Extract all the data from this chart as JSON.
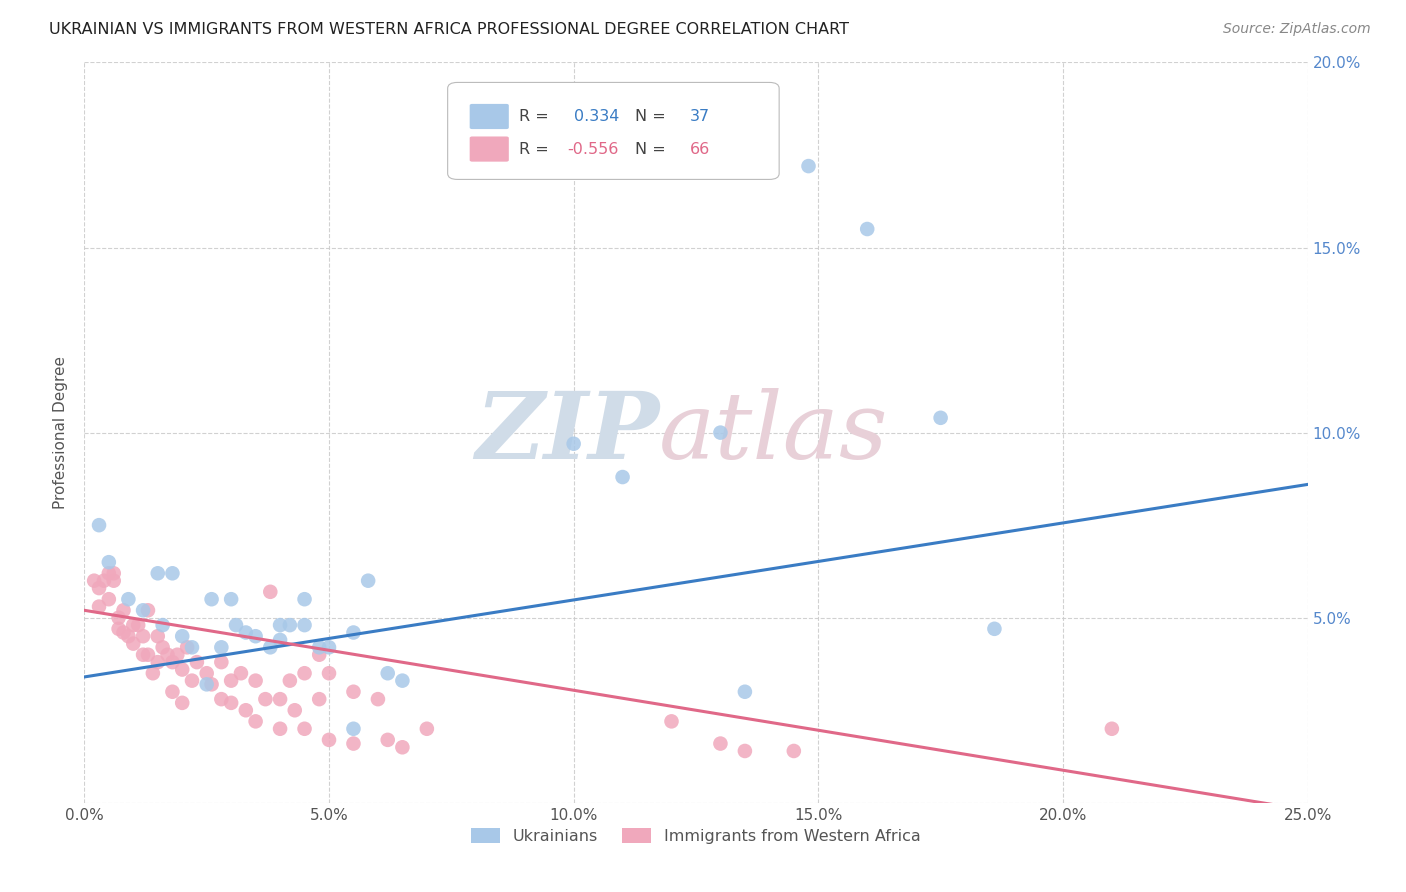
{
  "title": "UKRAINIAN VS IMMIGRANTS FROM WESTERN AFRICA PROFESSIONAL DEGREE CORRELATION CHART",
  "source": "Source: ZipAtlas.com",
  "ylabel": "Professional Degree",
  "xmin": 0.0,
  "xmax": 0.25,
  "ymin": 0.0,
  "ymax": 0.2,
  "blue_R": 0.334,
  "blue_N": 37,
  "pink_R": -0.556,
  "pink_N": 66,
  "blue_color": "#A8C8E8",
  "pink_color": "#F0A8BC",
  "blue_line_color": "#3A7CC4",
  "pink_line_color": "#E06888",
  "blue_line_start_y": 0.034,
  "blue_line_end_y": 0.086,
  "pink_line_start_y": 0.052,
  "pink_line_end_y": -0.002,
  "blue_scatter": [
    [
      0.003,
      0.075
    ],
    [
      0.005,
      0.065
    ],
    [
      0.009,
      0.055
    ],
    [
      0.012,
      0.052
    ],
    [
      0.015,
      0.062
    ],
    [
      0.016,
      0.048
    ],
    [
      0.018,
      0.062
    ],
    [
      0.02,
      0.045
    ],
    [
      0.022,
      0.042
    ],
    [
      0.025,
      0.032
    ],
    [
      0.026,
      0.055
    ],
    [
      0.028,
      0.042
    ],
    [
      0.03,
      0.055
    ],
    [
      0.031,
      0.048
    ],
    [
      0.033,
      0.046
    ],
    [
      0.035,
      0.045
    ],
    [
      0.038,
      0.042
    ],
    [
      0.04,
      0.048
    ],
    [
      0.04,
      0.044
    ],
    [
      0.042,
      0.048
    ],
    [
      0.045,
      0.048
    ],
    [
      0.045,
      0.055
    ],
    [
      0.048,
      0.042
    ],
    [
      0.05,
      0.042
    ],
    [
      0.055,
      0.046
    ],
    [
      0.058,
      0.06
    ],
    [
      0.062,
      0.035
    ],
    [
      0.065,
      0.033
    ],
    [
      0.1,
      0.097
    ],
    [
      0.11,
      0.088
    ],
    [
      0.13,
      0.1
    ],
    [
      0.135,
      0.03
    ],
    [
      0.148,
      0.172
    ],
    [
      0.16,
      0.155
    ],
    [
      0.175,
      0.104
    ],
    [
      0.186,
      0.047
    ],
    [
      0.055,
      0.02
    ]
  ],
  "pink_scatter": [
    [
      0.002,
      0.06
    ],
    [
      0.003,
      0.058
    ],
    [
      0.003,
      0.053
    ],
    [
      0.004,
      0.06
    ],
    [
      0.005,
      0.062
    ],
    [
      0.005,
      0.055
    ],
    [
      0.006,
      0.06
    ],
    [
      0.007,
      0.05
    ],
    [
      0.007,
      0.047
    ],
    [
      0.008,
      0.052
    ],
    [
      0.008,
      0.046
    ],
    [
      0.009,
      0.045
    ],
    [
      0.01,
      0.048
    ],
    [
      0.01,
      0.043
    ],
    [
      0.011,
      0.048
    ],
    [
      0.012,
      0.045
    ],
    [
      0.012,
      0.04
    ],
    [
      0.013,
      0.052
    ],
    [
      0.013,
      0.04
    ],
    [
      0.014,
      0.035
    ],
    [
      0.015,
      0.045
    ],
    [
      0.015,
      0.038
    ],
    [
      0.016,
      0.042
    ],
    [
      0.017,
      0.04
    ],
    [
      0.018,
      0.038
    ],
    [
      0.018,
      0.03
    ],
    [
      0.019,
      0.04
    ],
    [
      0.02,
      0.036
    ],
    [
      0.02,
      0.027
    ],
    [
      0.021,
      0.042
    ],
    [
      0.022,
      0.033
    ],
    [
      0.023,
      0.038
    ],
    [
      0.025,
      0.035
    ],
    [
      0.026,
      0.032
    ],
    [
      0.028,
      0.038
    ],
    [
      0.028,
      0.028
    ],
    [
      0.03,
      0.033
    ],
    [
      0.03,
      0.027
    ],
    [
      0.032,
      0.035
    ],
    [
      0.033,
      0.025
    ],
    [
      0.035,
      0.033
    ],
    [
      0.035,
      0.022
    ],
    [
      0.037,
      0.028
    ],
    [
      0.038,
      0.057
    ],
    [
      0.04,
      0.028
    ],
    [
      0.04,
      0.02
    ],
    [
      0.042,
      0.033
    ],
    [
      0.043,
      0.025
    ],
    [
      0.045,
      0.035
    ],
    [
      0.045,
      0.02
    ],
    [
      0.048,
      0.04
    ],
    [
      0.048,
      0.028
    ],
    [
      0.05,
      0.035
    ],
    [
      0.05,
      0.017
    ],
    [
      0.055,
      0.03
    ],
    [
      0.055,
      0.016
    ],
    [
      0.06,
      0.028
    ],
    [
      0.062,
      0.017
    ],
    [
      0.065,
      0.015
    ],
    [
      0.07,
      0.02
    ],
    [
      0.12,
      0.022
    ],
    [
      0.13,
      0.016
    ],
    [
      0.135,
      0.014
    ],
    [
      0.145,
      0.014
    ],
    [
      0.21,
      0.02
    ],
    [
      0.006,
      0.062
    ]
  ],
  "xticks": [
    0.0,
    0.05,
    0.1,
    0.15,
    0.2,
    0.25
  ],
  "yticks": [
    0.0,
    0.05,
    0.1,
    0.15,
    0.2
  ],
  "xticklabels": [
    "0.0%",
    "5.0%",
    "10.0%",
    "15.0%",
    "20.0%",
    "25.0%"
  ],
  "ytick_right_labels": [
    "",
    "5.0%",
    "10.0%",
    "15.0%",
    "20.0%"
  ],
  "legend_blue_label": "Ukrainians",
  "legend_pink_label": "Immigrants from Western Africa",
  "background_color": "#FFFFFF",
  "grid_color": "#CCCCCC",
  "title_color": "#222222",
  "source_color": "#888888",
  "watermark_zip_color": "#D0DCE8",
  "watermark_atlas_color": "#E8D0D8",
  "right_axis_color": "#5588CC"
}
